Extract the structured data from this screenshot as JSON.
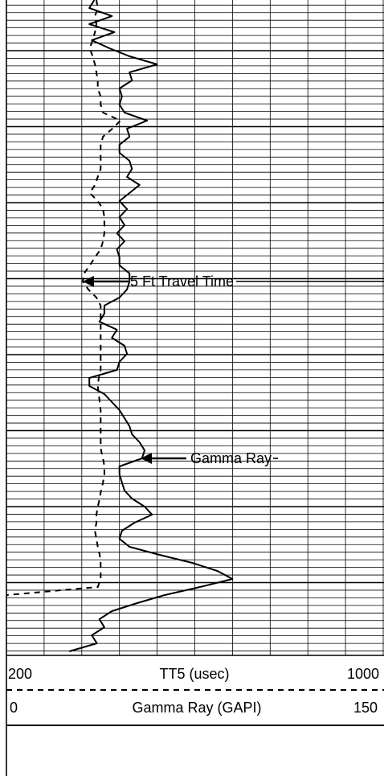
{
  "chart_data": {
    "type": "well-log",
    "grid": true,
    "series": [
      {
        "name": "TT5 (usec)",
        "color": "#000000",
        "line": "dashed",
        "xlim": [
          200,
          1000
        ],
        "xticks": [
          200,
          280,
          360,
          440,
          520,
          600,
          680,
          760,
          840,
          920,
          1000
        ],
        "values": [
          391,
          394,
          388,
          391,
          388,
          383,
          377,
          383,
          388,
          391,
          394,
          394,
          400,
          400,
          405,
          442,
          425,
          405,
          400,
          400,
          400,
          400,
          394,
          388,
          377,
          394,
          405,
          408,
          408,
          408,
          405,
          400,
          388,
          377,
          365,
          362,
          374,
          391,
          400,
          400,
          400,
          400,
          400,
          400,
          400,
          400,
          400,
          396,
          394,
          396,
          398,
          400,
          400,
          400,
          400,
          400,
          401,
          405,
          408,
          408,
          405,
          401,
          398,
          394,
          391,
          391,
          388,
          391,
          394,
          398,
          400,
          400,
          400,
          394,
          200,
          null,
          null,
          null,
          null,
          null,
          null,
          null
        ]
      },
      {
        "name": "Gamma Ray (GAPI)",
        "color": "#000000",
        "line": "solid",
        "xlim": [
          0,
          150
        ],
        "values": [
          35,
          33,
          42,
          33,
          43,
          34,
          41,
          49,
          60,
          49,
          50,
          45,
          46,
          45,
          47,
          56,
          48,
          49,
          45,
          45,
          49,
          50,
          48,
          53,
          49,
          45,
          48,
          45,
          47,
          44,
          47,
          44,
          45,
          45,
          49,
          49,
          48,
          45,
          39,
          39,
          37,
          44,
          42,
          47,
          48,
          45,
          44,
          33,
          33,
          39,
          42,
          45,
          47,
          49,
          50,
          53,
          55,
          54,
          45,
          45,
          46,
          47,
          50,
          55,
          58,
          51,
          46,
          45,
          49,
          61,
          74,
          84,
          90,
          77,
          63,
          52,
          42,
          37,
          39,
          34,
          36,
          25
        ]
      }
    ],
    "annotations": [
      {
        "text": "5 Ft Travel Time"
      },
      {
        "text": "Gamma Ray"
      }
    ]
  }
}
